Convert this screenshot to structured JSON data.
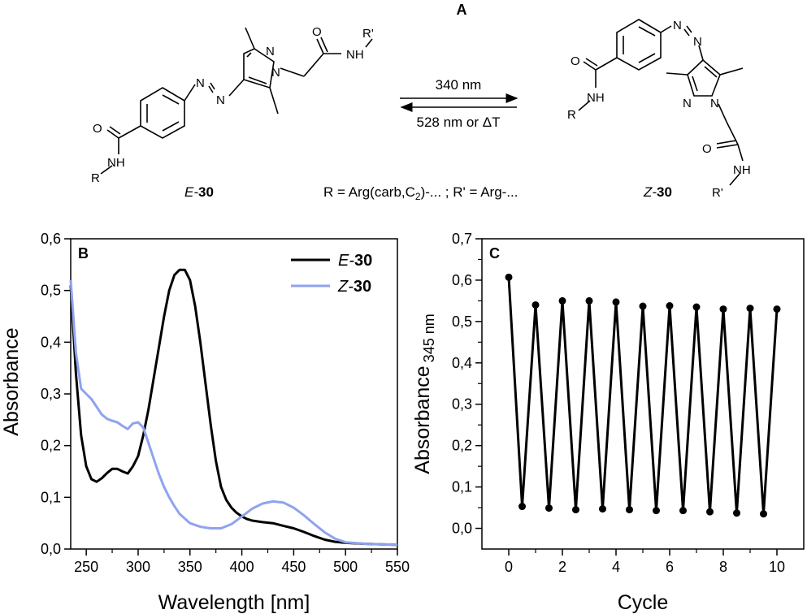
{
  "scheme": {
    "panel_label": "A",
    "forward_label": "340 nm",
    "reverse_label": "528 nm or ΔT",
    "e_label_prefix": "E-",
    "z_label_prefix": "Z-",
    "compound_number": "30",
    "r_definition": "R = Arg(carb,C",
    "r_subscript": "2",
    "r_definition_end": ")-... ; R' = Arg-...",
    "atoms": {
      "n": "N",
      "o": "O",
      "nh": "NH",
      "r": "R",
      "r_prime": "R'"
    }
  },
  "chart_data": [
    {
      "type": "line",
      "panel_label": "B",
      "xlabel": "Wavelength [nm]",
      "ylabel": "Absorbance",
      "xlim": [
        235,
        550
      ],
      "ylim": [
        0,
        0.6
      ],
      "x_ticks": [
        "250",
        "300",
        "350",
        "400",
        "450",
        "500",
        "550"
      ],
      "x_tick_values": [
        250,
        300,
        350,
        400,
        450,
        500,
        550
      ],
      "y_ticks": [
        "0,0",
        "0,1",
        "0,2",
        "0,3",
        "0,4",
        "0,5",
        "0,6"
      ],
      "y_tick_values": [
        0,
        0.1,
        0.2,
        0.3,
        0.4,
        0.5,
        0.6
      ],
      "legend_position": "top-right",
      "series": [
        {
          "name_prefix": "E-",
          "name_bold": "30",
          "color": "#000000",
          "x": [
            235,
            240,
            245,
            250,
            255,
            260,
            265,
            270,
            275,
            280,
            285,
            290,
            295,
            300,
            305,
            310,
            315,
            320,
            325,
            330,
            335,
            340,
            345,
            350,
            355,
            360,
            365,
            370,
            375,
            380,
            385,
            390,
            395,
            400,
            405,
            410,
            420,
            430,
            440,
            450,
            460,
            470,
            480,
            490,
            500,
            520,
            550
          ],
          "y": [
            0.51,
            0.34,
            0.22,
            0.16,
            0.135,
            0.13,
            0.137,
            0.147,
            0.155,
            0.155,
            0.15,
            0.146,
            0.16,
            0.18,
            0.22,
            0.27,
            0.33,
            0.39,
            0.45,
            0.5,
            0.53,
            0.54,
            0.54,
            0.52,
            0.47,
            0.4,
            0.32,
            0.24,
            0.17,
            0.12,
            0.095,
            0.08,
            0.07,
            0.063,
            0.058,
            0.055,
            0.052,
            0.05,
            0.045,
            0.04,
            0.033,
            0.025,
            0.018,
            0.014,
            0.012,
            0.01,
            0.008
          ]
        },
        {
          "name_prefix": "Z-",
          "name_bold": "30",
          "color": "#8fa3ee",
          "x": [
            235,
            240,
            245,
            250,
            255,
            260,
            265,
            270,
            275,
            280,
            285,
            290,
            295,
            300,
            305,
            310,
            315,
            320,
            325,
            330,
            335,
            340,
            350,
            360,
            370,
            380,
            390,
            400,
            410,
            420,
            430,
            440,
            450,
            460,
            470,
            480,
            490,
            500,
            520,
            550
          ],
          "y": [
            0.52,
            0.38,
            0.31,
            0.3,
            0.29,
            0.275,
            0.26,
            0.252,
            0.248,
            0.245,
            0.238,
            0.232,
            0.243,
            0.245,
            0.235,
            0.205,
            0.175,
            0.145,
            0.12,
            0.1,
            0.083,
            0.068,
            0.05,
            0.043,
            0.04,
            0.04,
            0.048,
            0.063,
            0.078,
            0.088,
            0.092,
            0.09,
            0.08,
            0.065,
            0.048,
            0.032,
            0.02,
            0.013,
            0.01,
            0.008
          ]
        }
      ]
    },
    {
      "type": "line",
      "panel_label": "C",
      "xlabel": "Cycle",
      "ylabel_main": "Absorbance",
      "ylabel_sub": "345 nm",
      "xlim": [
        -1,
        11
      ],
      "ylim": [
        -0.05,
        0.7
      ],
      "x_ticks": [
        "0",
        "2",
        "4",
        "6",
        "8",
        "10"
      ],
      "x_tick_values": [
        0,
        2,
        4,
        6,
        8,
        10
      ],
      "y_ticks": [
        "0,0",
        "0,1",
        "0,2",
        "0,3",
        "0,4",
        "0,5",
        "0,6",
        "0,7"
      ],
      "y_tick_values": [
        0,
        0.1,
        0.2,
        0.3,
        0.4,
        0.5,
        0.6,
        0.7
      ],
      "series": [
        {
          "color": "#000000",
          "x": [
            0,
            0.5,
            1,
            1.5,
            2,
            2.5,
            3,
            3.5,
            4,
            4.5,
            5,
            5.5,
            6,
            6.5,
            7,
            7.5,
            8,
            8.5,
            9,
            9.5,
            10
          ],
          "y": [
            0.607,
            0.053,
            0.54,
            0.049,
            0.55,
            0.045,
            0.55,
            0.047,
            0.547,
            0.045,
            0.537,
            0.043,
            0.538,
            0.043,
            0.535,
            0.04,
            0.53,
            0.037,
            0.532,
            0.035,
            0.53
          ]
        }
      ]
    }
  ]
}
